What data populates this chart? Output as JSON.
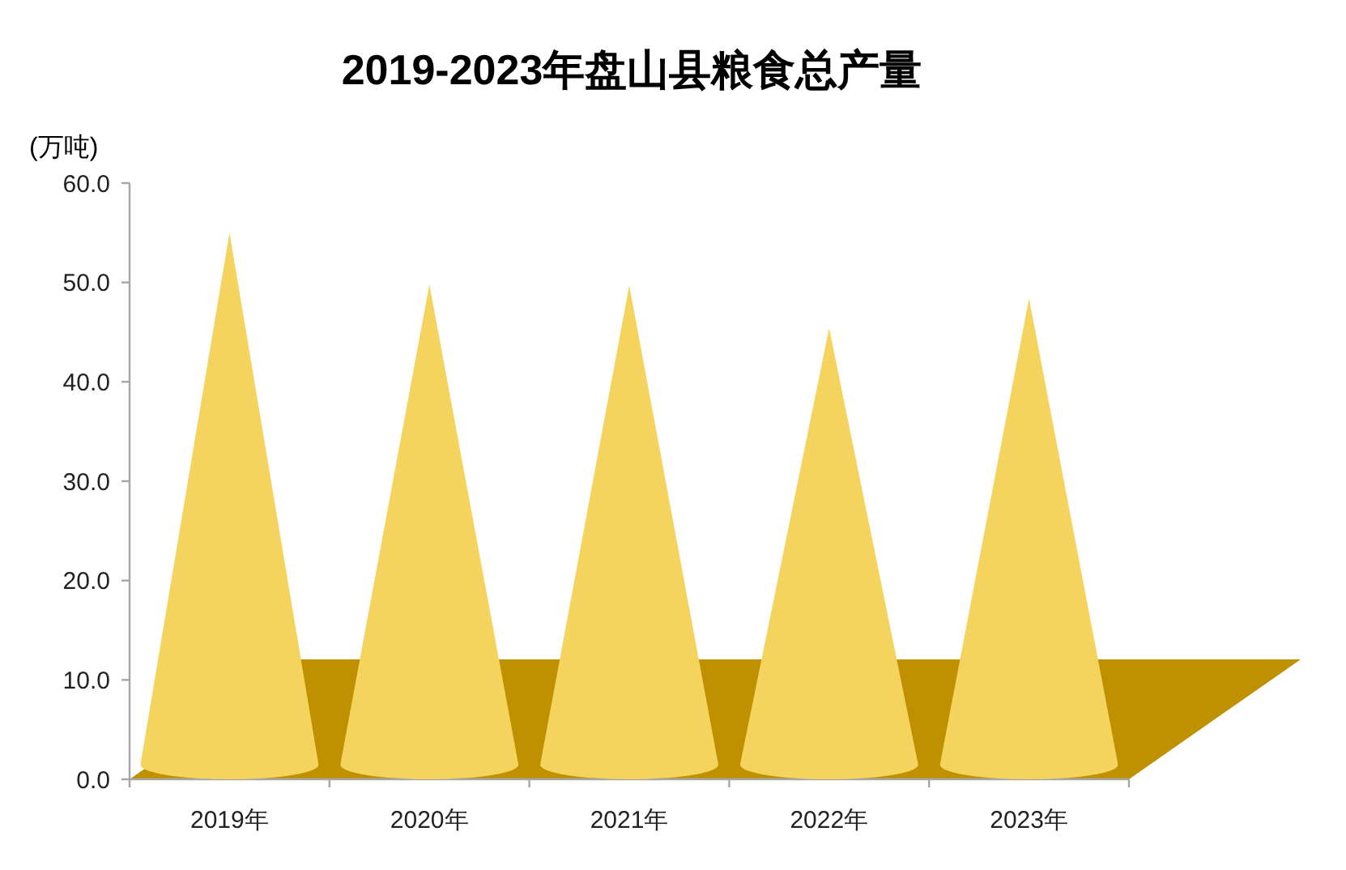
{
  "chart_data": {
    "type": "bar",
    "title": "2019-2023年盘山县粮食总产量",
    "ylabel": "(万吨)",
    "categories": [
      "2019年",
      "2020年",
      "2021年",
      "2022年",
      "2023年"
    ],
    "values": [
      55,
      49.8,
      49.7,
      45.4,
      48.4
    ],
    "color": "#f4d35e",
    "ylim": [
      0,
      60
    ],
    "yticks": [
      {
        "value": 0,
        "label": "0.0"
      },
      {
        "value": 10,
        "label": "10.0"
      },
      {
        "value": 20,
        "label": "20.0"
      },
      {
        "value": 30,
        "label": "30.0"
      },
      {
        "value": 40,
        "label": "40.0"
      },
      {
        "value": 50,
        "label": "50.0"
      },
      {
        "value": 60,
        "label": "60.0"
      }
    ]
  }
}
